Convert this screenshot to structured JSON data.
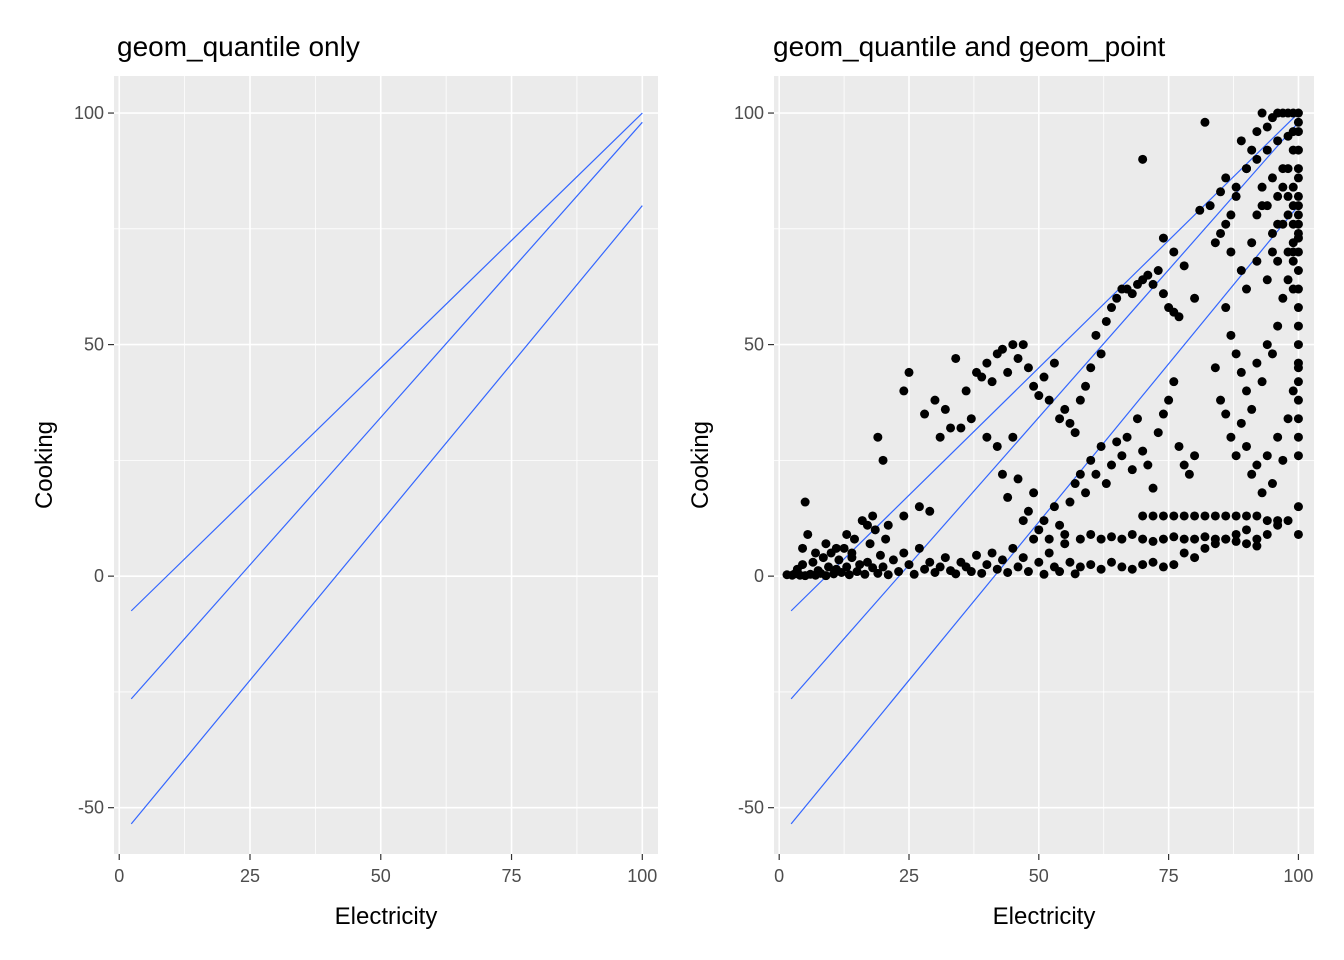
{
  "panels": [
    {
      "title": "geom_quantile only",
      "xlabel": "Electricity",
      "ylabel": "Cooking",
      "show_points": false
    },
    {
      "title": "geom_quantile and geom_point",
      "xlabel": "Electricity",
      "ylabel": "Cooking",
      "show_points": true
    }
  ],
  "chart_data": {
    "type": "scatter",
    "xlim": [
      -1,
      103
    ],
    "ylim": [
      -60,
      108
    ],
    "x_ticks": [
      0,
      25,
      50,
      75,
      100
    ],
    "x_tick_labels": [
      "0",
      "25",
      "50",
      "75",
      "100"
    ],
    "y_ticks": [
      -50,
      0,
      50,
      100
    ],
    "y_tick_labels": [
      "-50",
      "0",
      "50",
      "100"
    ],
    "grid": true,
    "panel_background": "#ebebeb",
    "grid_color": "#ffffff",
    "line_color": "#3366ff",
    "point_color": "#000000",
    "quantile_lines": [
      {
        "x": [
          2.3,
          100
        ],
        "y": [
          -7.5,
          100
        ]
      },
      {
        "x": [
          2.3,
          100
        ],
        "y": [
          -26.5,
          98
        ]
      },
      {
        "x": [
          2.3,
          100
        ],
        "y": [
          -53.5,
          80
        ]
      }
    ],
    "points": [
      [
        1.5,
        0.3
      ],
      [
        2.5,
        0.2
      ],
      [
        3,
        0.5
      ],
      [
        3.5,
        1.5
      ],
      [
        4,
        0.2
      ],
      [
        4.5,
        2.5
      ],
      [
        5,
        0.1
      ],
      [
        5,
        16
      ],
      [
        5.5,
        9
      ],
      [
        6,
        0.4
      ],
      [
        6.5,
        3
      ],
      [
        7,
        0.2
      ],
      [
        7.5,
        1.2
      ],
      [
        8,
        0.6
      ],
      [
        8.5,
        4
      ],
      [
        9,
        0.1
      ],
      [
        9.5,
        2
      ],
      [
        10,
        5
      ],
      [
        10.5,
        0.5
      ],
      [
        11,
        1.5
      ],
      [
        11.5,
        3.5
      ],
      [
        12,
        0.8
      ],
      [
        12.5,
        6
      ],
      [
        13,
        2
      ],
      [
        13.5,
        0.3
      ],
      [
        14,
        4
      ],
      [
        14.5,
        8
      ],
      [
        15,
        1
      ],
      [
        15.5,
        2.5
      ],
      [
        16,
        12
      ],
      [
        16.5,
        0.4
      ],
      [
        17,
        3
      ],
      [
        17.5,
        7
      ],
      [
        18,
        1.8
      ],
      [
        18.5,
        10
      ],
      [
        19,
        0.6
      ],
      [
        19.5,
        4.5
      ],
      [
        20,
        2
      ],
      [
        20.5,
        8
      ],
      [
        21,
        0.3
      ],
      [
        22,
        3.5
      ],
      [
        23,
        1
      ],
      [
        24,
        5
      ],
      [
        25,
        2.5
      ],
      [
        26,
        0.4
      ],
      [
        27,
        6
      ],
      [
        28,
        1.5
      ],
      [
        29,
        3
      ],
      [
        30,
        0.8
      ],
      [
        31,
        2
      ],
      [
        32,
        4
      ],
      [
        33,
        1.2
      ],
      [
        34,
        0.5
      ],
      [
        35,
        3
      ],
      [
        36,
        2
      ],
      [
        37,
        1
      ],
      [
        38,
        4.5
      ],
      [
        39,
        0.6
      ],
      [
        40,
        2.5
      ],
      [
        41,
        5
      ],
      [
        42,
        1.5
      ],
      [
        43,
        3.5
      ],
      [
        44,
        0.8
      ],
      [
        45,
        6
      ],
      [
        46,
        2
      ],
      [
        47,
        4
      ],
      [
        48,
        1
      ],
      [
        49,
        8
      ],
      [
        50,
        3
      ],
      [
        51,
        0.4
      ],
      [
        52,
        5
      ],
      [
        53,
        2
      ],
      [
        54,
        1
      ],
      [
        55,
        7
      ],
      [
        56,
        3
      ],
      [
        57,
        0.5
      ],
      [
        58,
        8
      ],
      [
        4.5,
        6
      ],
      [
        7,
        5
      ],
      [
        9,
        7
      ],
      [
        11,
        6
      ],
      [
        13,
        9
      ],
      [
        14,
        5
      ],
      [
        17,
        11
      ],
      [
        18,
        13
      ],
      [
        21,
        11
      ],
      [
        24,
        13
      ],
      [
        27,
        15
      ],
      [
        29,
        14
      ],
      [
        19,
        30
      ],
      [
        20,
        25
      ],
      [
        24,
        40
      ],
      [
        25,
        44
      ],
      [
        28,
        35
      ],
      [
        30,
        38
      ],
      [
        31,
        30
      ],
      [
        32,
        36
      ],
      [
        33,
        32
      ],
      [
        34,
        47
      ],
      [
        35,
        32
      ],
      [
        36,
        40
      ],
      [
        37,
        34
      ],
      [
        38,
        44
      ],
      [
        39,
        43
      ],
      [
        40,
        46
      ],
      [
        41,
        42
      ],
      [
        42,
        48
      ],
      [
        43,
        49
      ],
      [
        44,
        44
      ],
      [
        45,
        50
      ],
      [
        46,
        47
      ],
      [
        47,
        50
      ],
      [
        48,
        45
      ],
      [
        49,
        41
      ],
      [
        50,
        39
      ],
      [
        51,
        43
      ],
      [
        52,
        38
      ],
      [
        53,
        46
      ],
      [
        54,
        34
      ],
      [
        55,
        36
      ],
      [
        56,
        33
      ],
      [
        57,
        31
      ],
      [
        58,
        38
      ],
      [
        59,
        41
      ],
      [
        60,
        45
      ],
      [
        61,
        52
      ],
      [
        62,
        48
      ],
      [
        63,
        55
      ],
      [
        64,
        58
      ],
      [
        65,
        60
      ],
      [
        66,
        62
      ],
      [
        67,
        62
      ],
      [
        68,
        61
      ],
      [
        69,
        63
      ],
      [
        70,
        64
      ],
      [
        71,
        65
      ],
      [
        72,
        63
      ],
      [
        73,
        66
      ],
      [
        74,
        61
      ],
      [
        75,
        58
      ],
      [
        76,
        57
      ],
      [
        77,
        56
      ],
      [
        40,
        30
      ],
      [
        42,
        28
      ],
      [
        43,
        22
      ],
      [
        44,
        17
      ],
      [
        45,
        30
      ],
      [
        46,
        21
      ],
      [
        47,
        12
      ],
      [
        48,
        14
      ],
      [
        49,
        18
      ],
      [
        50,
        10
      ],
      [
        51,
        12
      ],
      [
        52,
        8
      ],
      [
        53,
        15
      ],
      [
        54,
        11
      ],
      [
        55,
        9
      ],
      [
        56,
        16
      ],
      [
        57,
        20
      ],
      [
        58,
        22
      ],
      [
        59,
        18
      ],
      [
        60,
        25
      ],
      [
        61,
        22
      ],
      [
        62,
        28
      ],
      [
        63,
        20
      ],
      [
        64,
        24
      ],
      [
        65,
        29
      ],
      [
        66,
        26
      ],
      [
        67,
        30
      ],
      [
        68,
        23
      ],
      [
        69,
        34
      ],
      [
        70,
        27
      ],
      [
        71,
        24
      ],
      [
        72,
        19
      ],
      [
        73,
        31
      ],
      [
        74,
        35
      ],
      [
        75,
        38
      ],
      [
        76,
        42
      ],
      [
        77,
        28
      ],
      [
        78,
        24
      ],
      [
        79,
        22
      ],
      [
        80,
        26
      ],
      [
        58,
        2
      ],
      [
        60,
        2.5
      ],
      [
        62,
        1.5
      ],
      [
        64,
        3
      ],
      [
        66,
        2
      ],
      [
        68,
        1.5
      ],
      [
        70,
        2.5
      ],
      [
        72,
        3
      ],
      [
        74,
        2
      ],
      [
        76,
        2.5
      ],
      [
        78,
        5
      ],
      [
        80,
        4
      ],
      [
        82,
        6
      ],
      [
        84,
        7
      ],
      [
        86,
        8
      ],
      [
        88,
        9
      ],
      [
        90,
        10
      ],
      [
        92,
        8
      ],
      [
        94,
        9
      ],
      [
        96,
        11
      ],
      [
        98,
        12
      ],
      [
        100,
        9
      ],
      [
        100,
        15
      ],
      [
        70,
        13
      ],
      [
        72,
        13
      ],
      [
        74,
        13
      ],
      [
        76,
        13
      ],
      [
        78,
        13
      ],
      [
        80,
        13
      ],
      [
        82,
        13
      ],
      [
        84,
        13
      ],
      [
        86,
        13
      ],
      [
        88,
        13
      ],
      [
        90,
        13
      ],
      [
        92,
        13
      ],
      [
        94,
        12
      ],
      [
        96,
        12
      ],
      [
        60,
        9
      ],
      [
        62,
        8
      ],
      [
        64,
        8.5
      ],
      [
        66,
        8
      ],
      [
        68,
        9
      ],
      [
        70,
        8
      ],
      [
        72,
        7.5
      ],
      [
        74,
        8
      ],
      [
        76,
        8.5
      ],
      [
        78,
        8
      ],
      [
        80,
        8
      ],
      [
        82,
        8.5
      ],
      [
        84,
        8
      ],
      [
        86,
        8
      ],
      [
        88,
        7.5
      ],
      [
        90,
        7
      ],
      [
        92,
        6.5
      ],
      [
        70,
        90
      ],
      [
        74,
        73
      ],
      [
        76,
        70
      ],
      [
        78,
        67
      ],
      [
        80,
        60
      ],
      [
        81,
        79
      ],
      [
        82,
        98
      ],
      [
        83,
        80
      ],
      [
        84,
        72
      ],
      [
        85,
        83
      ],
      [
        86,
        86
      ],
      [
        87,
        78
      ],
      [
        88,
        82
      ],
      [
        89,
        94
      ],
      [
        90,
        88
      ],
      [
        91,
        92
      ],
      [
        92,
        96
      ],
      [
        93,
        100
      ],
      [
        94,
        97
      ],
      [
        95,
        99
      ],
      [
        96,
        100
      ],
      [
        97,
        100
      ],
      [
        98,
        100
      ],
      [
        99,
        100
      ],
      [
        100,
        100
      ],
      [
        85,
        74
      ],
      [
        86,
        76
      ],
      [
        87,
        70
      ],
      [
        88,
        84
      ],
      [
        89,
        66
      ],
      [
        90,
        62
      ],
      [
        91,
        72
      ],
      [
        92,
        68
      ],
      [
        93,
        80
      ],
      [
        94,
        64
      ],
      [
        95,
        70
      ],
      [
        96,
        76
      ],
      [
        97,
        84
      ],
      [
        98,
        88
      ],
      [
        99,
        92
      ],
      [
        100,
        96
      ],
      [
        86,
        58
      ],
      [
        87,
        52
      ],
      [
        88,
        48
      ],
      [
        89,
        44
      ],
      [
        90,
        40
      ],
      [
        91,
        36
      ],
      [
        92,
        46
      ],
      [
        93,
        42
      ],
      [
        94,
        50
      ],
      [
        95,
        48
      ],
      [
        96,
        54
      ],
      [
        97,
        60
      ],
      [
        98,
        64
      ],
      [
        99,
        70
      ],
      [
        100,
        74
      ],
      [
        84,
        45
      ],
      [
        85,
        38
      ],
      [
        86,
        35
      ],
      [
        87,
        30
      ],
      [
        88,
        26
      ],
      [
        89,
        33
      ],
      [
        90,
        28
      ],
      [
        91,
        22
      ],
      [
        92,
        24
      ],
      [
        93,
        18
      ],
      [
        94,
        26
      ],
      [
        95,
        20
      ],
      [
        96,
        30
      ],
      [
        97,
        25
      ],
      [
        98,
        34
      ],
      [
        99,
        40
      ],
      [
        100,
        45
      ],
      [
        90,
        88
      ],
      [
        92,
        90
      ],
      [
        94,
        92
      ],
      [
        96,
        94
      ],
      [
        98,
        95
      ],
      [
        99,
        96
      ],
      [
        100,
        98
      ],
      [
        100,
        92
      ],
      [
        100,
        88
      ],
      [
        100,
        86
      ],
      [
        100,
        82
      ],
      [
        100,
        80
      ],
      [
        100,
        78
      ],
      [
        100,
        76
      ],
      [
        100,
        73
      ],
      [
        100,
        70
      ],
      [
        100,
        66
      ],
      [
        100,
        62
      ],
      [
        100,
        58
      ],
      [
        100,
        54
      ],
      [
        100,
        50
      ],
      [
        100,
        46
      ],
      [
        100,
        42
      ],
      [
        100,
        38
      ],
      [
        100,
        34
      ],
      [
        100,
        30
      ],
      [
        100,
        26
      ],
      [
        99,
        84
      ],
      [
        99,
        80
      ],
      [
        99,
        76
      ],
      [
        99,
        72
      ],
      [
        99,
        68
      ],
      [
        99,
        62
      ],
      [
        98,
        82
      ],
      [
        98,
        78
      ],
      [
        98,
        70
      ],
      [
        97,
        88
      ],
      [
        97,
        76
      ],
      [
        96,
        82
      ],
      [
        96,
        68
      ],
      [
        95,
        86
      ],
      [
        95,
        74
      ],
      [
        94,
        80
      ],
      [
        93,
        84
      ],
      [
        92,
        78
      ]
    ]
  }
}
